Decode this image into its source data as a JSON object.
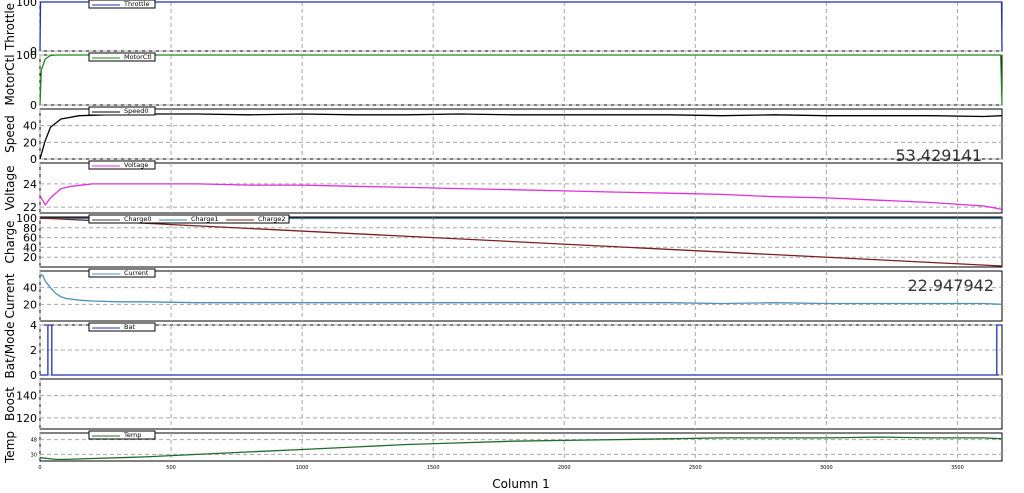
{
  "xlabel": "Column 1",
  "x_ticks": [
    "0",
    "500",
    "1000",
    "1500",
    "2000",
    "2500",
    "3000",
    "3500"
  ],
  "x_range": [
    0,
    3670
  ],
  "readouts": {
    "speed": "53.429141",
    "current": "22.947942"
  },
  "colors": {
    "Throttle": "#1f2fb5",
    "MotorCtl": "#1a8a1a",
    "Speed": "#1a1a1a",
    "Voltage": "#e02ee0",
    "Charge0": "#333333",
    "Charge1": "#3b7fa6",
    "Charge2": "#7a2020",
    "Current": "#4f8fb8",
    "Bat": "#1f2fb5",
    "Temp": "#1f6b2b"
  },
  "chart_data": [
    {
      "type": "line",
      "ylabel": "Throttle",
      "ylim": [
        0,
        100
      ],
      "yticks": [
        "0",
        "100"
      ],
      "grid": true,
      "legend": [
        "Throttle"
      ],
      "series": [
        {
          "name": "Throttle",
          "x": [
            0,
            2,
            3668,
            3670
          ],
          "y": [
            0,
            100,
            100,
            0
          ]
        }
      ]
    },
    {
      "type": "line",
      "ylabel": "MotorCtl",
      "ylim": [
        0,
        100
      ],
      "yticks": [
        "0",
        "100"
      ],
      "grid": true,
      "legend": [
        "MotorCtl"
      ],
      "series": [
        {
          "name": "MotorCtl",
          "x": [
            0,
            5,
            20,
            40,
            60,
            3665,
            3670
          ],
          "y": [
            0,
            70,
            92,
            99,
            100,
            100,
            0
          ]
        }
      ]
    },
    {
      "type": "line",
      "ylabel": "Speed",
      "ylim": [
        0,
        60
      ],
      "yticks": [
        "0",
        "20",
        "40"
      ],
      "grid": true,
      "legend": [
        "Speed0"
      ],
      "series": [
        {
          "name": "Speed0",
          "x": [
            0,
            20,
            40,
            80,
            150,
            250,
            400,
            600,
            800,
            1000,
            1200,
            1400,
            1600,
            1800,
            2000,
            2200,
            2400,
            2600,
            2800,
            3000,
            3200,
            3400,
            3600,
            3670
          ],
          "y": [
            0,
            22,
            38,
            48,
            52,
            53,
            54,
            54,
            53,
            54,
            53,
            53,
            54,
            53,
            53,
            53,
            53,
            52,
            53,
            52,
            52,
            52,
            51,
            52
          ]
        }
      ]
    },
    {
      "type": "line",
      "ylabel": "Voltage",
      "ylim": [
        21.5,
        25.8
      ],
      "yticks": [
        "22",
        "24"
      ],
      "grid": true,
      "legend": [
        "Voltage"
      ],
      "series": [
        {
          "name": "Voltage",
          "x": [
            0,
            20,
            40,
            80,
            120,
            200,
            400,
            600,
            800,
            1000,
            1200,
            1400,
            1600,
            1800,
            2000,
            2200,
            2400,
            2600,
            2800,
            3000,
            3200,
            3400,
            3600,
            3650,
            3670
          ],
          "y": [
            23.0,
            22.2,
            22.8,
            23.6,
            23.8,
            24.0,
            24.0,
            24.0,
            23.9,
            23.9,
            23.8,
            23.7,
            23.6,
            23.5,
            23.4,
            23.3,
            23.2,
            23.1,
            22.9,
            22.8,
            22.6,
            22.4,
            22.1,
            21.9,
            21.8
          ]
        }
      ]
    },
    {
      "type": "line",
      "ylabel": "Charge",
      "ylim": [
        0,
        102
      ],
      "yticks": [
        "20",
        "40",
        "60",
        "80",
        "100"
      ],
      "grid": true,
      "legend": [
        "Charge0",
        "Charge1",
        "Charge2"
      ],
      "series": [
        {
          "name": "Charge0",
          "x": [
            0,
            3670
          ],
          "y": [
            100,
            100
          ]
        },
        {
          "name": "Charge1",
          "x": [
            0,
            3670
          ],
          "y": [
            99,
            99
          ]
        },
        {
          "name": "Charge2",
          "x": [
            0,
            3670
          ],
          "y": [
            100,
            2
          ]
        }
      ]
    },
    {
      "type": "line",
      "ylabel": "Current",
      "ylim": [
        0,
        60
      ],
      "yticks": [
        "20",
        "40"
      ],
      "grid": true,
      "legend": [
        "Current"
      ],
      "series": [
        {
          "name": "Current",
          "x": [
            0,
            10,
            20,
            40,
            60,
            80,
            100,
            150,
            200,
            300,
            400,
            600,
            800,
            1000,
            1200,
            1400,
            1600,
            1800,
            2000,
            2200,
            2400,
            2600,
            2800,
            3000,
            3200,
            3400,
            3600,
            3670
          ],
          "y": [
            55,
            55,
            48,
            40,
            33,
            29,
            27,
            25,
            24,
            23,
            23,
            22,
            22,
            22,
            22,
            22,
            22,
            22,
            22,
            22,
            22,
            21,
            22,
            21,
            21,
            21,
            21,
            20
          ]
        }
      ]
    },
    {
      "type": "line",
      "ylabel": "Bat/Mode",
      "ylim": [
        0,
        4
      ],
      "yticks": [
        "0",
        "2",
        "4"
      ],
      "grid": true,
      "legend": [
        "Bat"
      ],
      "series": [
        {
          "name": "Bat",
          "x": [
            0,
            30,
            30,
            45,
            45,
            3650,
            3650,
            3670
          ],
          "y": [
            0,
            0,
            4,
            4,
            0,
            0,
            4,
            4
          ]
        }
      ]
    },
    {
      "type": "line",
      "ylabel": "Boost",
      "ylim": [
        110,
        155
      ],
      "yticks": [
        "120",
        "140"
      ],
      "grid": true,
      "legend": [],
      "series": []
    },
    {
      "type": "line",
      "ylabel": "Temp",
      "ylim": [
        22,
        56
      ],
      "yticks": [
        "30",
        "48"
      ],
      "grid": true,
      "legend": [
        "Temp"
      ],
      "series": [
        {
          "name": "Temp",
          "x": [
            0,
            30,
            60,
            100,
            200,
            400,
            600,
            800,
            1000,
            1200,
            1400,
            1600,
            1800,
            2000,
            2200,
            2400,
            2600,
            2800,
            3000,
            3200,
            3400,
            3600,
            3670
          ],
          "y": [
            26,
            25,
            24,
            24,
            25,
            27,
            30,
            33,
            36,
            39,
            42,
            44,
            46,
            47,
            48,
            49,
            50,
            50,
            50,
            51,
            50,
            50,
            49
          ]
        }
      ]
    }
  ]
}
